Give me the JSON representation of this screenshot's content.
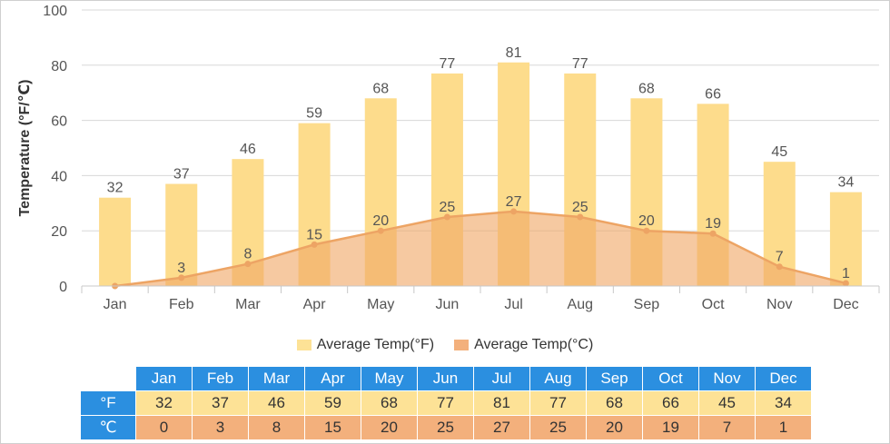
{
  "chart_data": {
    "type": "bar",
    "categories": [
      "Jan",
      "Feb",
      "Mar",
      "Apr",
      "May",
      "Jun",
      "Jul",
      "Aug",
      "Sep",
      "Oct",
      "Nov",
      "Dec"
    ],
    "series": [
      {
        "name": "Average Temp(°F)",
        "type": "bar",
        "color": "#fddc8c",
        "values": [
          32,
          37,
          46,
          59,
          68,
          77,
          81,
          77,
          68,
          66,
          45,
          34
        ]
      },
      {
        "name": "Average Temp(°C)",
        "type": "area",
        "color": "#f0a868",
        "values": [
          0,
          3,
          8,
          15,
          20,
          25,
          27,
          25,
          20,
          19,
          7,
          1
        ]
      }
    ],
    "ylabel": "Temperature (°F/℃)",
    "ylim": [
      0,
      100
    ],
    "yticks": [
      0,
      20,
      40,
      60,
      80,
      100
    ],
    "grid": true,
    "legend": "bottom"
  },
  "table": {
    "row_labels": {
      "f": "°F",
      "c": "℃"
    }
  }
}
